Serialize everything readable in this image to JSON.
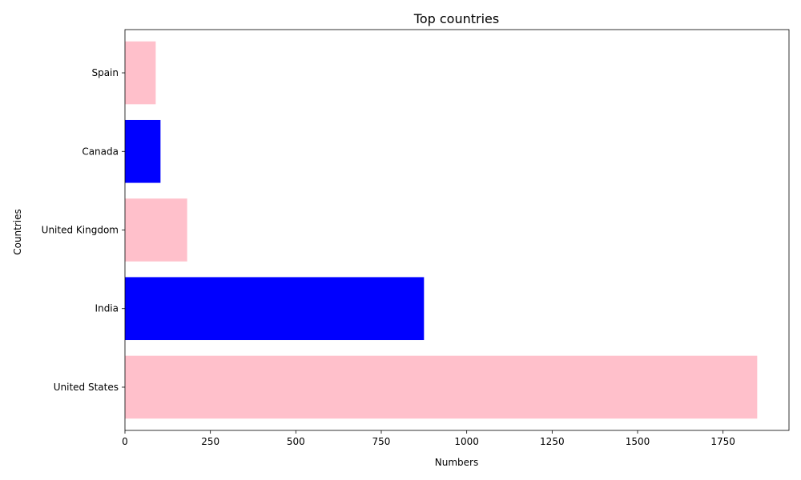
{
  "chart_data": {
    "type": "bar",
    "orientation": "horizontal",
    "title": "Top countries",
    "xlabel": "Numbers",
    "ylabel": "Countries",
    "categories": [
      "United States",
      "India",
      "United Kingdom",
      "Canada",
      "Spain"
    ],
    "values": [
      1850,
      875,
      182,
      104,
      90
    ],
    "bar_colors": [
      "#ffc0cb",
      "#0000ff",
      "#ffc0cb",
      "#0000ff",
      "#ffc0cb"
    ],
    "xlim": [
      0,
      1943
    ],
    "xticks": [
      0,
      250,
      500,
      750,
      1000,
      1250,
      1500,
      1750
    ],
    "grid": false,
    "legend": "none"
  }
}
